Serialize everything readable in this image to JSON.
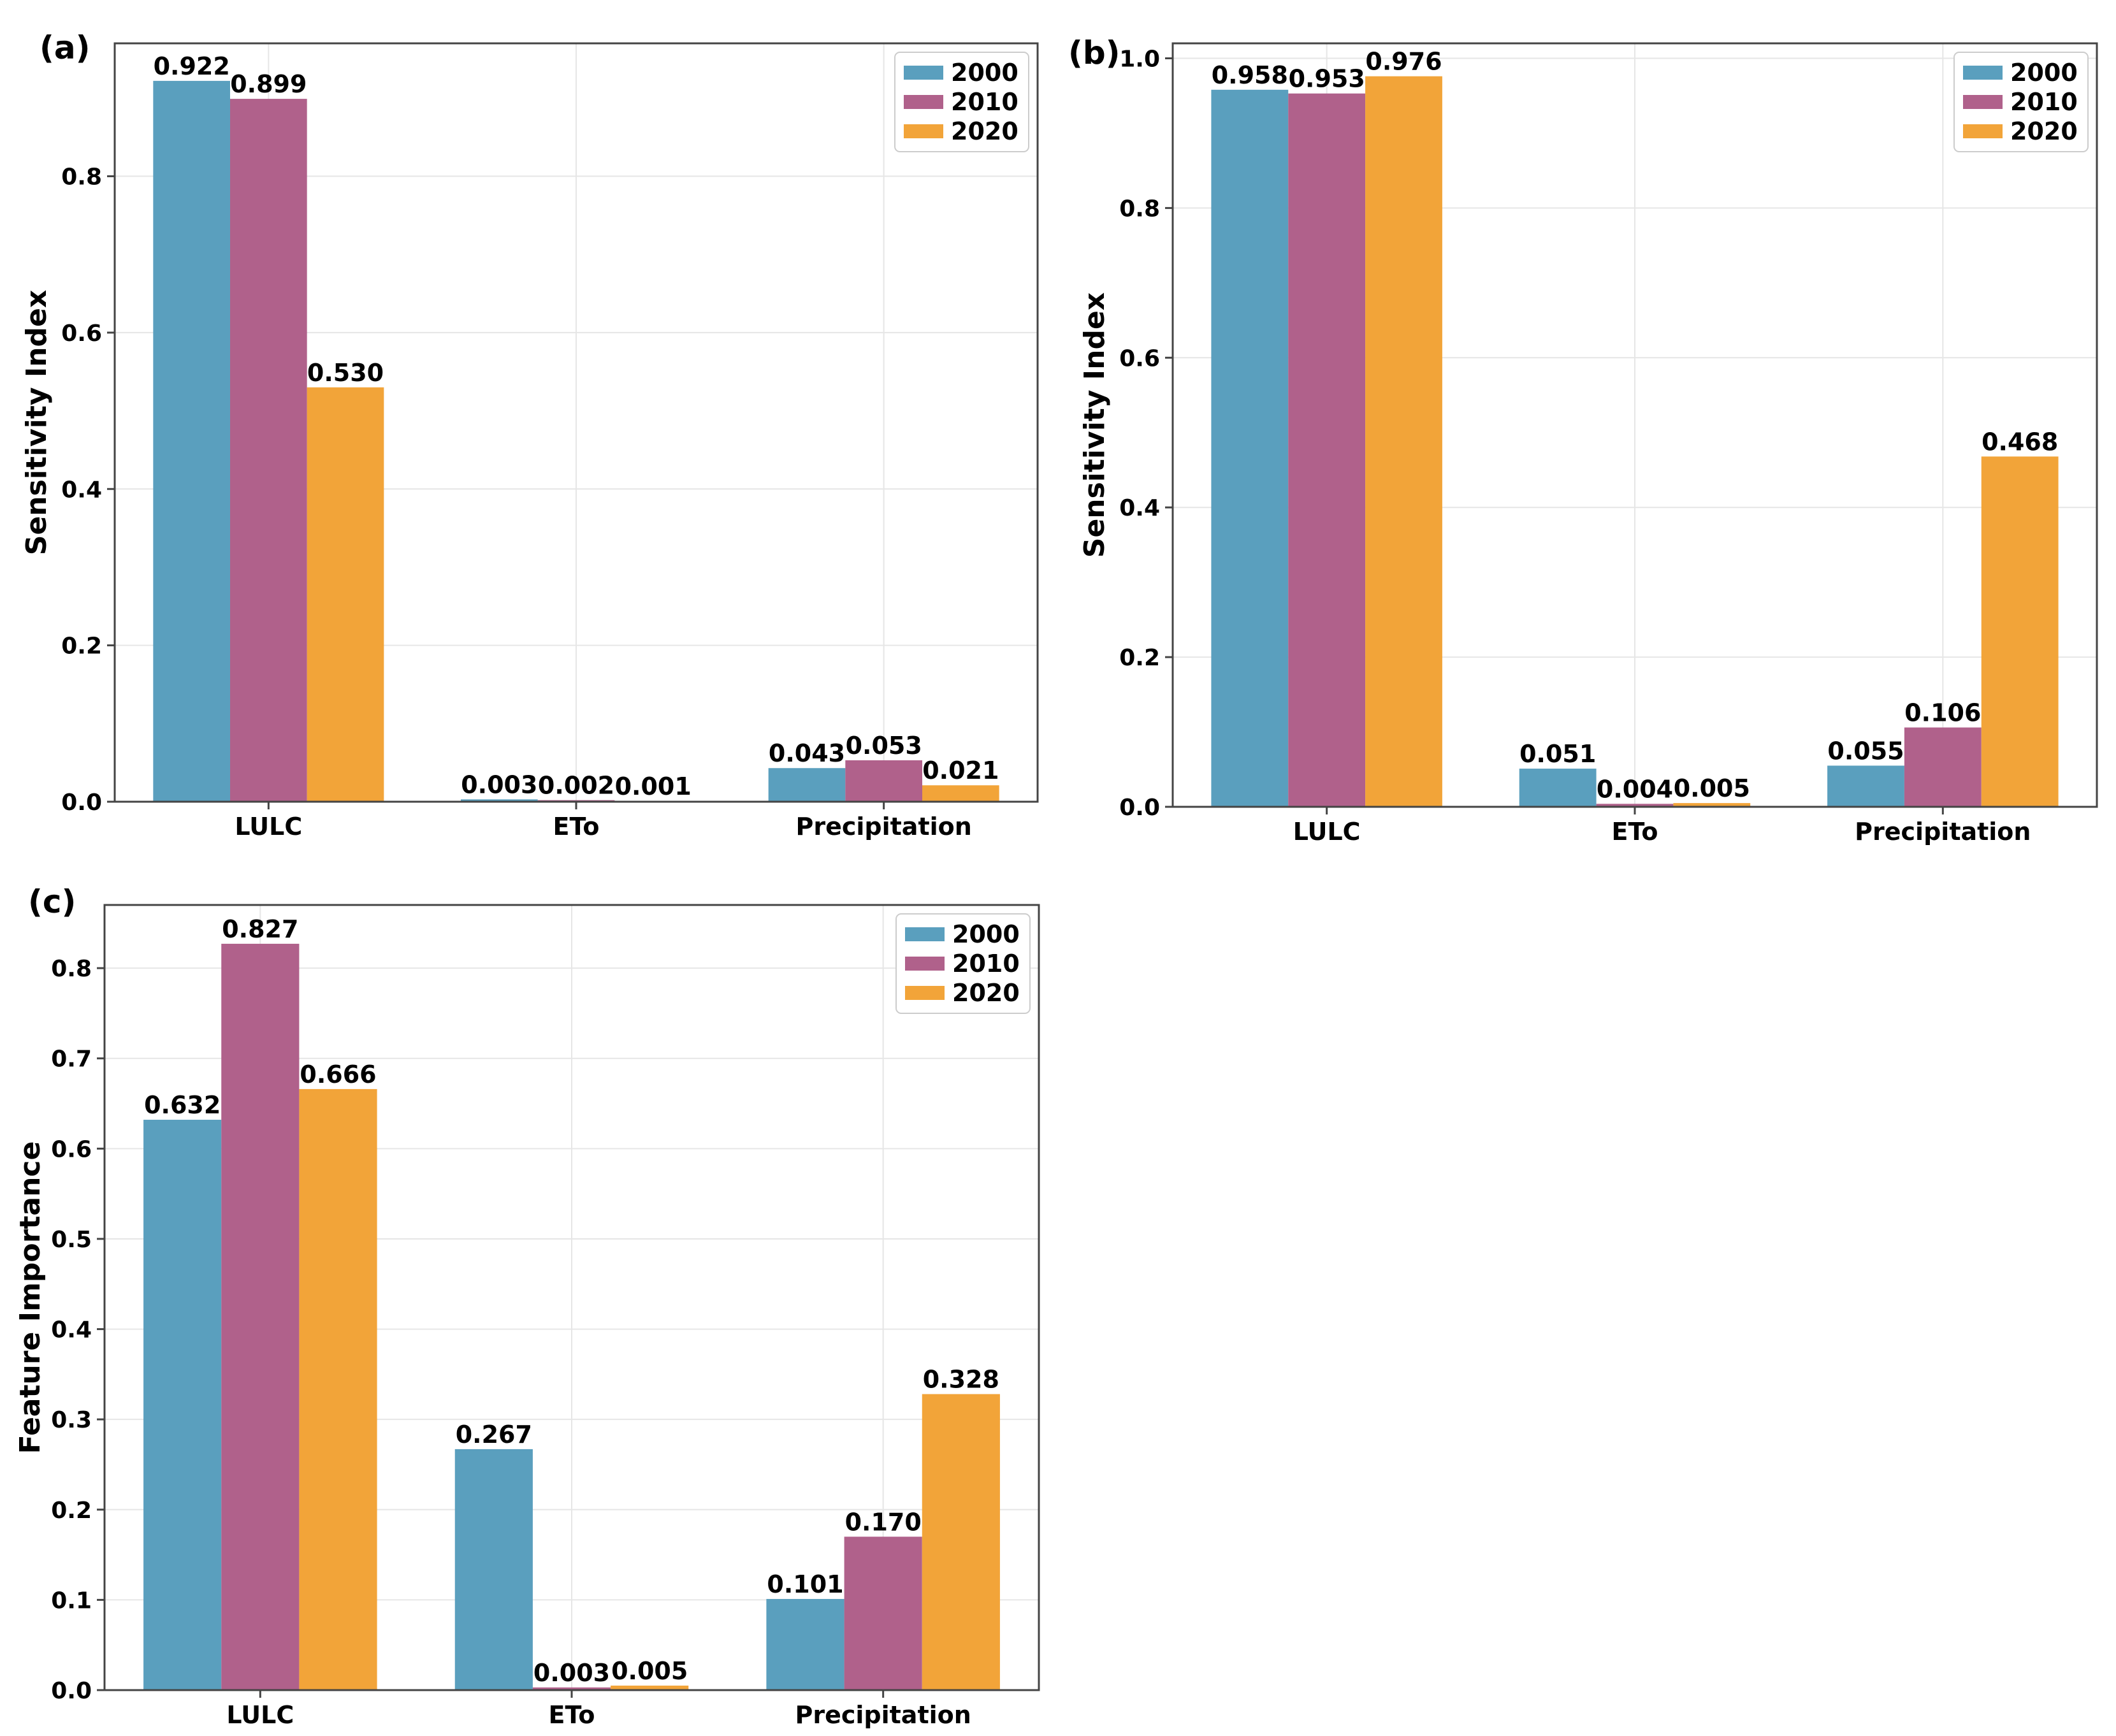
{
  "colors": {
    "2000": "#5a9fbe",
    "2010": "#b0618b",
    "2020": "#f2a439"
  },
  "chart_data": [
    {
      "panel": "(a)",
      "type": "bar",
      "categories": [
        "LULC",
        "ETo",
        "Precipitation"
      ],
      "series": [
        {
          "name": "2000",
          "values": [
            0.922,
            0.003,
            0.043
          ],
          "labels": [
            "0.922",
            "0.003",
            "0.043"
          ]
        },
        {
          "name": "2010",
          "values": [
            0.899,
            0.002,
            0.053
          ],
          "labels": [
            "0.899",
            "0.002",
            "0.053"
          ]
        },
        {
          "name": "2020",
          "values": [
            0.53,
            0.001,
            0.021
          ],
          "labels": [
            "0.530",
            "0.001",
            "0.021"
          ]
        }
      ],
      "ylabel": "Sensitivity  Index",
      "ylim": [
        0,
        0.97
      ],
      "yticks": [
        0.0,
        0.2,
        0.4,
        0.6,
        0.8
      ],
      "ytick_labels": [
        "0.0",
        "0.2",
        "0.4",
        "0.6",
        "0.8"
      ],
      "legend": "top-right",
      "grid": true
    },
    {
      "panel": "(b)",
      "type": "bar",
      "categories": [
        "LULC",
        "ETo",
        "Precipitation"
      ],
      "series": [
        {
          "name": "2000",
          "values": [
            0.958,
            0.051,
            0.055
          ],
          "labels": [
            "0.958",
            "0.051",
            "0.055"
          ]
        },
        {
          "name": "2010",
          "values": [
            0.953,
            0.004,
            0.106
          ],
          "labels": [
            "0.953",
            "0.004",
            "0.106"
          ]
        },
        {
          "name": "2020",
          "values": [
            0.976,
            0.005,
            0.468
          ],
          "labels": [
            "0.976",
            "0.005",
            "0.468"
          ]
        }
      ],
      "ylabel": "Sensitivity  Index",
      "ylim": [
        0,
        1.02
      ],
      "yticks": [
        0.0,
        0.2,
        0.4,
        0.6,
        0.8,
        1.0
      ],
      "ytick_labels": [
        "0.0",
        "0.2",
        "0.4",
        "0.6",
        "0.8",
        "1.0"
      ],
      "legend": "top-right",
      "grid": true
    },
    {
      "panel": "(c)",
      "type": "bar",
      "categories": [
        "LULC",
        "ETo",
        "Precipitation"
      ],
      "series": [
        {
          "name": "2000",
          "values": [
            0.632,
            0.267,
            0.101
          ],
          "labels": [
            "0.632",
            "0.267",
            "0.101"
          ]
        },
        {
          "name": "2010",
          "values": [
            0.827,
            0.003,
            0.17
          ],
          "labels": [
            "0.827",
            "0.003",
            "0.170"
          ]
        },
        {
          "name": "2020",
          "values": [
            0.666,
            0.005,
            0.328
          ],
          "labels": [
            "0.666",
            "0.005",
            "0.328"
          ]
        }
      ],
      "ylabel": "Feature Importance",
      "ylim": [
        0,
        0.87
      ],
      "yticks": [
        0.0,
        0.1,
        0.2,
        0.3,
        0.4,
        0.5,
        0.6,
        0.7,
        0.8
      ],
      "ytick_labels": [
        "0.0",
        "0.1",
        "0.2",
        "0.3",
        "0.4",
        "0.5",
        "0.6",
        "0.7",
        "0.8"
      ],
      "legend": "top-right",
      "grid": true
    }
  ]
}
